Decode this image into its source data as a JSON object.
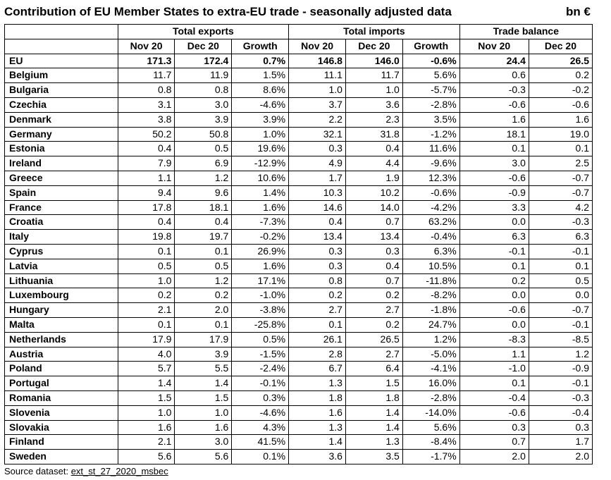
{
  "title": "Contribution of EU Member States to extra-EU trade - seasonally adjusted data",
  "unit": "bn €",
  "groups": [
    "Total exports",
    "Total imports",
    "Trade balance"
  ],
  "subheaders": [
    "Nov 20",
    "Dec 20",
    "Growth",
    "Nov 20",
    "Dec 20",
    "Growth",
    "Nov 20",
    "Dec 20"
  ],
  "rows": [
    [
      "EU",
      "171.3",
      "172.4",
      "0.7%",
      "146.8",
      "146.0",
      "-0.6%",
      "24.4",
      "26.5"
    ],
    [
      "Belgium",
      "11.7",
      "11.9",
      "1.5%",
      "11.1",
      "11.7",
      "5.6%",
      "0.6",
      "0.2"
    ],
    [
      "Bulgaria",
      "0.8",
      "0.8",
      "8.6%",
      "1.0",
      "1.0",
      "-5.7%",
      "-0.3",
      "-0.2"
    ],
    [
      "Czechia",
      "3.1",
      "3.0",
      "-4.6%",
      "3.7",
      "3.6",
      "-2.8%",
      "-0.6",
      "-0.6"
    ],
    [
      "Denmark",
      "3.8",
      "3.9",
      "3.9%",
      "2.2",
      "2.3",
      "3.5%",
      "1.6",
      "1.6"
    ],
    [
      "Germany",
      "50.2",
      "50.8",
      "1.0%",
      "32.1",
      "31.8",
      "-1.2%",
      "18.1",
      "19.0"
    ],
    [
      "Estonia",
      "0.4",
      "0.5",
      "19.6%",
      "0.3",
      "0.4",
      "11.6%",
      "0.1",
      "0.1"
    ],
    [
      "Ireland",
      "7.9",
      "6.9",
      "-12.9%",
      "4.9",
      "4.4",
      "-9.6%",
      "3.0",
      "2.5"
    ],
    [
      "Greece",
      "1.1",
      "1.2",
      "10.6%",
      "1.7",
      "1.9",
      "12.3%",
      "-0.6",
      "-0.7"
    ],
    [
      "Spain",
      "9.4",
      "9.6",
      "1.4%",
      "10.3",
      "10.2",
      "-0.6%",
      "-0.9",
      "-0.7"
    ],
    [
      "France",
      "17.8",
      "18.1",
      "1.6%",
      "14.6",
      "14.0",
      "-4.2%",
      "3.3",
      "4.2"
    ],
    [
      "Croatia",
      "0.4",
      "0.4",
      "-7.3%",
      "0.4",
      "0.7",
      "63.2%",
      "0.0",
      "-0.3"
    ],
    [
      "Italy",
      "19.8",
      "19.7",
      "-0.2%",
      "13.4",
      "13.4",
      "-0.4%",
      "6.3",
      "6.3"
    ],
    [
      "Cyprus",
      "0.1",
      "0.1",
      "26.9%",
      "0.3",
      "0.3",
      "6.3%",
      "-0.1",
      "-0.1"
    ],
    [
      "Latvia",
      "0.5",
      "0.5",
      "1.6%",
      "0.3",
      "0.4",
      "10.5%",
      "0.1",
      "0.1"
    ],
    [
      "Lithuania",
      "1.0",
      "1.2",
      "17.1%",
      "0.8",
      "0.7",
      "-11.8%",
      "0.2",
      "0.5"
    ],
    [
      "Luxembourg",
      "0.2",
      "0.2",
      "-1.0%",
      "0.2",
      "0.2",
      "-8.2%",
      "0.0",
      "0.0"
    ],
    [
      "Hungary",
      "2.1",
      "2.0",
      "-3.8%",
      "2.7",
      "2.7",
      "-1.8%",
      "-0.6",
      "-0.7"
    ],
    [
      "Malta",
      "0.1",
      "0.1",
      "-25.8%",
      "0.1",
      "0.2",
      "24.7%",
      "0.0",
      "-0.1"
    ],
    [
      "Netherlands",
      "17.9",
      "17.9",
      "0.5%",
      "26.1",
      "26.5",
      "1.2%",
      "-8.3",
      "-8.5"
    ],
    [
      "Austria",
      "4.0",
      "3.9",
      "-1.5%",
      "2.8",
      "2.7",
      "-5.0%",
      "1.1",
      "1.2"
    ],
    [
      "Poland",
      "5.7",
      "5.5",
      "-2.4%",
      "6.7",
      "6.4",
      "-4.1%",
      "-1.0",
      "-0.9"
    ],
    [
      "Portugal",
      "1.4",
      "1.4",
      "-0.1%",
      "1.3",
      "1.5",
      "16.0%",
      "0.1",
      "-0.1"
    ],
    [
      "Romania",
      "1.5",
      "1.5",
      "0.3%",
      "1.8",
      "1.8",
      "-2.8%",
      "-0.4",
      "-0.3"
    ],
    [
      "Slovenia",
      "1.0",
      "1.0",
      "-4.6%",
      "1.6",
      "1.4",
      "-14.0%",
      "-0.6",
      "-0.4"
    ],
    [
      "Slovakia",
      "1.6",
      "1.6",
      "4.3%",
      "1.3",
      "1.4",
      "5.6%",
      "0.3",
      "0.3"
    ],
    [
      "Finland",
      "2.1",
      "3.0",
      "41.5%",
      "1.4",
      "1.3",
      "-8.4%",
      "0.7",
      "1.7"
    ],
    [
      "Sweden",
      "5.6",
      "5.6",
      "0.1%",
      "3.6",
      "3.5",
      "-1.7%",
      "2.0",
      "2.0"
    ]
  ],
  "source": {
    "label": "Source dataset:",
    "link": "ext_st_27_2020_msbec"
  }
}
